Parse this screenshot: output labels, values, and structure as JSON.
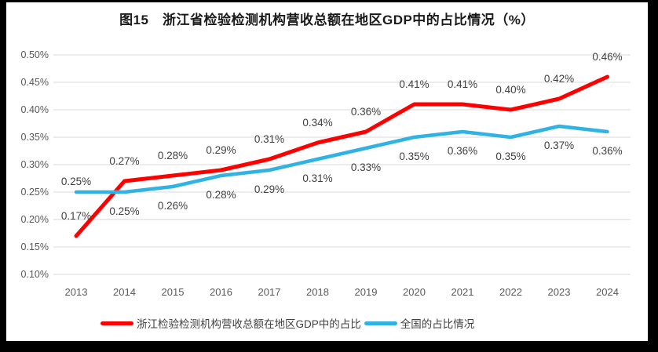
{
  "title": "图15　浙江省检验检测机构营收总额在地区GDP中的占比情况（%）",
  "chart_data": {
    "type": "line",
    "title": "图15　浙江省检验检测机构营收总额在地区GDP中的占比情况（%）",
    "categories": [
      "2013",
      "2014",
      "2015",
      "2016",
      "2017",
      "2018",
      "2019",
      "2020",
      "2021",
      "2022",
      "2023",
      "2024"
    ],
    "series": [
      {
        "name": "浙江检验检测机构营收总额在地区GDP中的占比",
        "color": "#fe0000",
        "stroke_width": 5,
        "label_position": "above",
        "label_overrides": {},
        "values": [
          0.17,
          0.27,
          0.28,
          0.29,
          0.31,
          0.34,
          0.36,
          0.41,
          0.41,
          0.4,
          0.42,
          0.46
        ],
        "data_labels": [
          "0.17%",
          "0.27%",
          "0.28%",
          "0.29%",
          "0.31%",
          "0.34%",
          "0.36%",
          "0.41%",
          "0.41%",
          "0.40%",
          "0.42%",
          "0.46%"
        ]
      },
      {
        "name": "全国的占比情况",
        "color": "#30b2e3",
        "stroke_width": 4.5,
        "label_position": "below",
        "label_overrides": {
          "0": "above"
        },
        "values": [
          0.25,
          0.25,
          0.26,
          0.28,
          0.29,
          0.31,
          0.33,
          0.35,
          0.36,
          0.35,
          0.37,
          0.36
        ],
        "data_labels": [
          "0.25%",
          "0.25%",
          "0.26%",
          "0.28%",
          "0.29%",
          "0.31%",
          "0.33%",
          "0.35%",
          "0.36%",
          "0.35%",
          "0.37%",
          "0.36%"
        ]
      }
    ],
    "xlabel": "",
    "ylabel": "",
    "unit": "%",
    "y_axis": {
      "min": 0.1,
      "max": 0.5,
      "step": 0.05,
      "ticks": [
        {
          "value": 0.1,
          "label": "0.10%"
        },
        {
          "value": 0.15,
          "label": "0.15%"
        },
        {
          "value": 0.2,
          "label": "0.20%"
        },
        {
          "value": 0.25,
          "label": "0.25%"
        },
        {
          "value": 0.3,
          "label": "0.30%"
        },
        {
          "value": 0.35,
          "label": "0.35%"
        },
        {
          "value": 0.4,
          "label": "0.40%"
        },
        {
          "value": 0.45,
          "label": "0.45%"
        },
        {
          "value": 0.5,
          "label": "0.50%"
        }
      ]
    },
    "grid": "horizontal",
    "legend_position": "bottom"
  },
  "colors": {
    "grid": "#d9d9d9",
    "axis_text": "#595959",
    "data_label_text": "#404040",
    "frame": "#000000",
    "panel": "#ffffff"
  }
}
